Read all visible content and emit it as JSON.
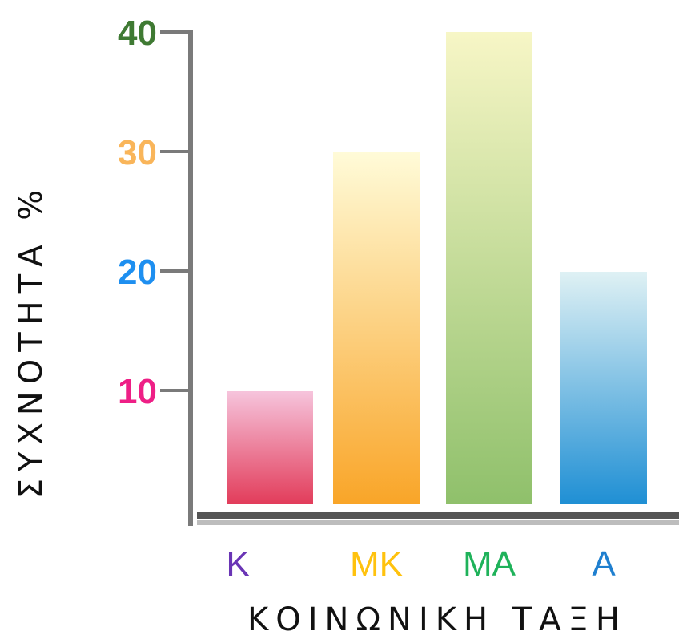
{
  "chart_data": {
    "type": "bar",
    "categories": [
      "Κ",
      "ΜΚ",
      "ΜΑ",
      "Α"
    ],
    "values": [
      10,
      30,
      40,
      20
    ],
    "ylim": [
      0,
      40
    ],
    "yticks": [
      10,
      20,
      30,
      40
    ],
    "xlabel": "ΚΟΙΝΩΝΙΚΗ ΤΑΞΗ",
    "ylabel": "ΣΥΧΝΟΤΗΤΑ %",
    "grid": false,
    "legend": "none",
    "tick_label_colors": {
      "10": "#ee1f86",
      "20": "#1e8ff0",
      "30": "#f9b55a",
      "40": "#3f7a33"
    },
    "category_label_colors": [
      "#6a35b5",
      "#ffc20e",
      "#1fb25a",
      "#1f7fcf"
    ],
    "bar_gradients": [
      {
        "top": "#f6c4dc",
        "bottom": "#e23c5a"
      },
      {
        "top": "#fffbd8",
        "bottom": "#f9a528"
      },
      {
        "top": "#f7f6c6",
        "bottom": "#8fc06b"
      },
      {
        "top": "#dff1f4",
        "bottom": "#1f8fd4"
      }
    ]
  }
}
